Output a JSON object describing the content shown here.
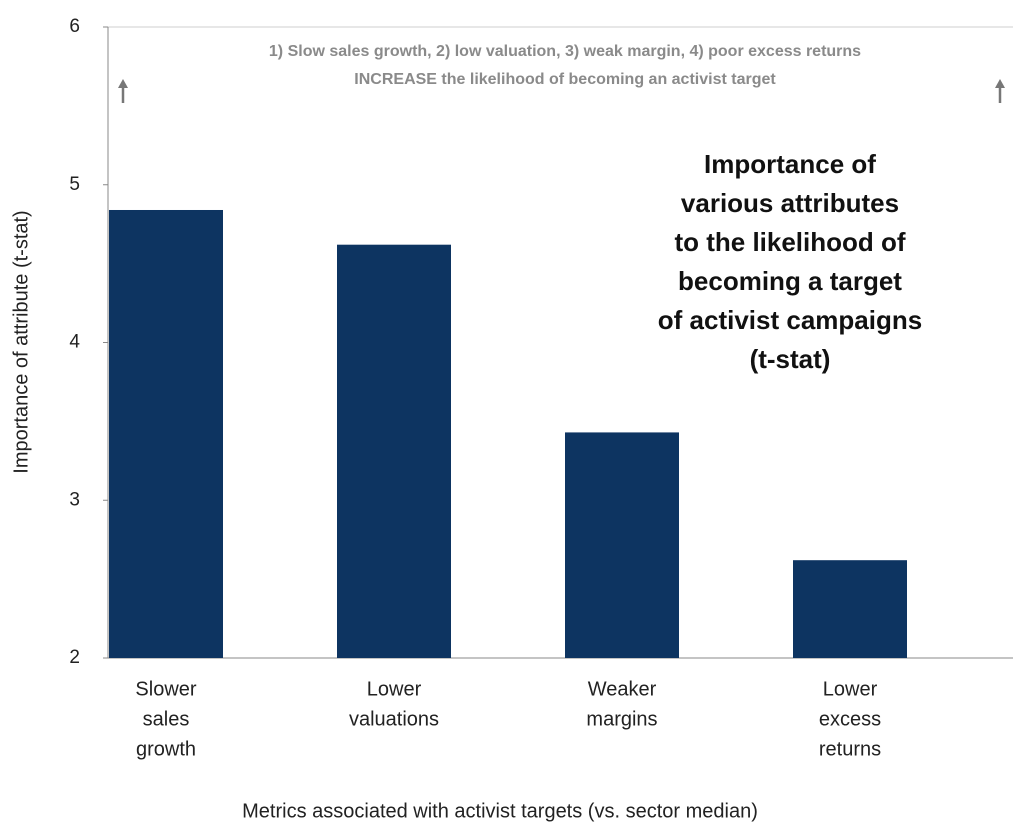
{
  "chart_data": {
    "type": "bar",
    "title": [
      "Importance of",
      "various attributes",
      "to the likelihood of",
      "becoming a target",
      "of activist campaigns",
      "(t-stat)"
    ],
    "annotation": [
      "1) Slow sales growth, 2) low valuation, 3) weak margin, 4) poor excess returns",
      "INCREASE  the likelihood of becoming an activist target"
    ],
    "x_label": "Metrics associated with activist targets (vs. sector median)",
    "y_label": "Importance of attribute (t-stat)",
    "categories": [
      [
        "Slower",
        "sales",
        "growth"
      ],
      [
        "Lower",
        "valuations"
      ],
      [
        "Weaker",
        "margins"
      ],
      [
        "Lower",
        "excess",
        "returns"
      ]
    ],
    "values": [
      4.84,
      4.62,
      3.43,
      2.62
    ],
    "color": "#0d3461",
    "ylim": [
      2,
      6
    ],
    "yticks": [
      2,
      3,
      4,
      5,
      6
    ]
  }
}
